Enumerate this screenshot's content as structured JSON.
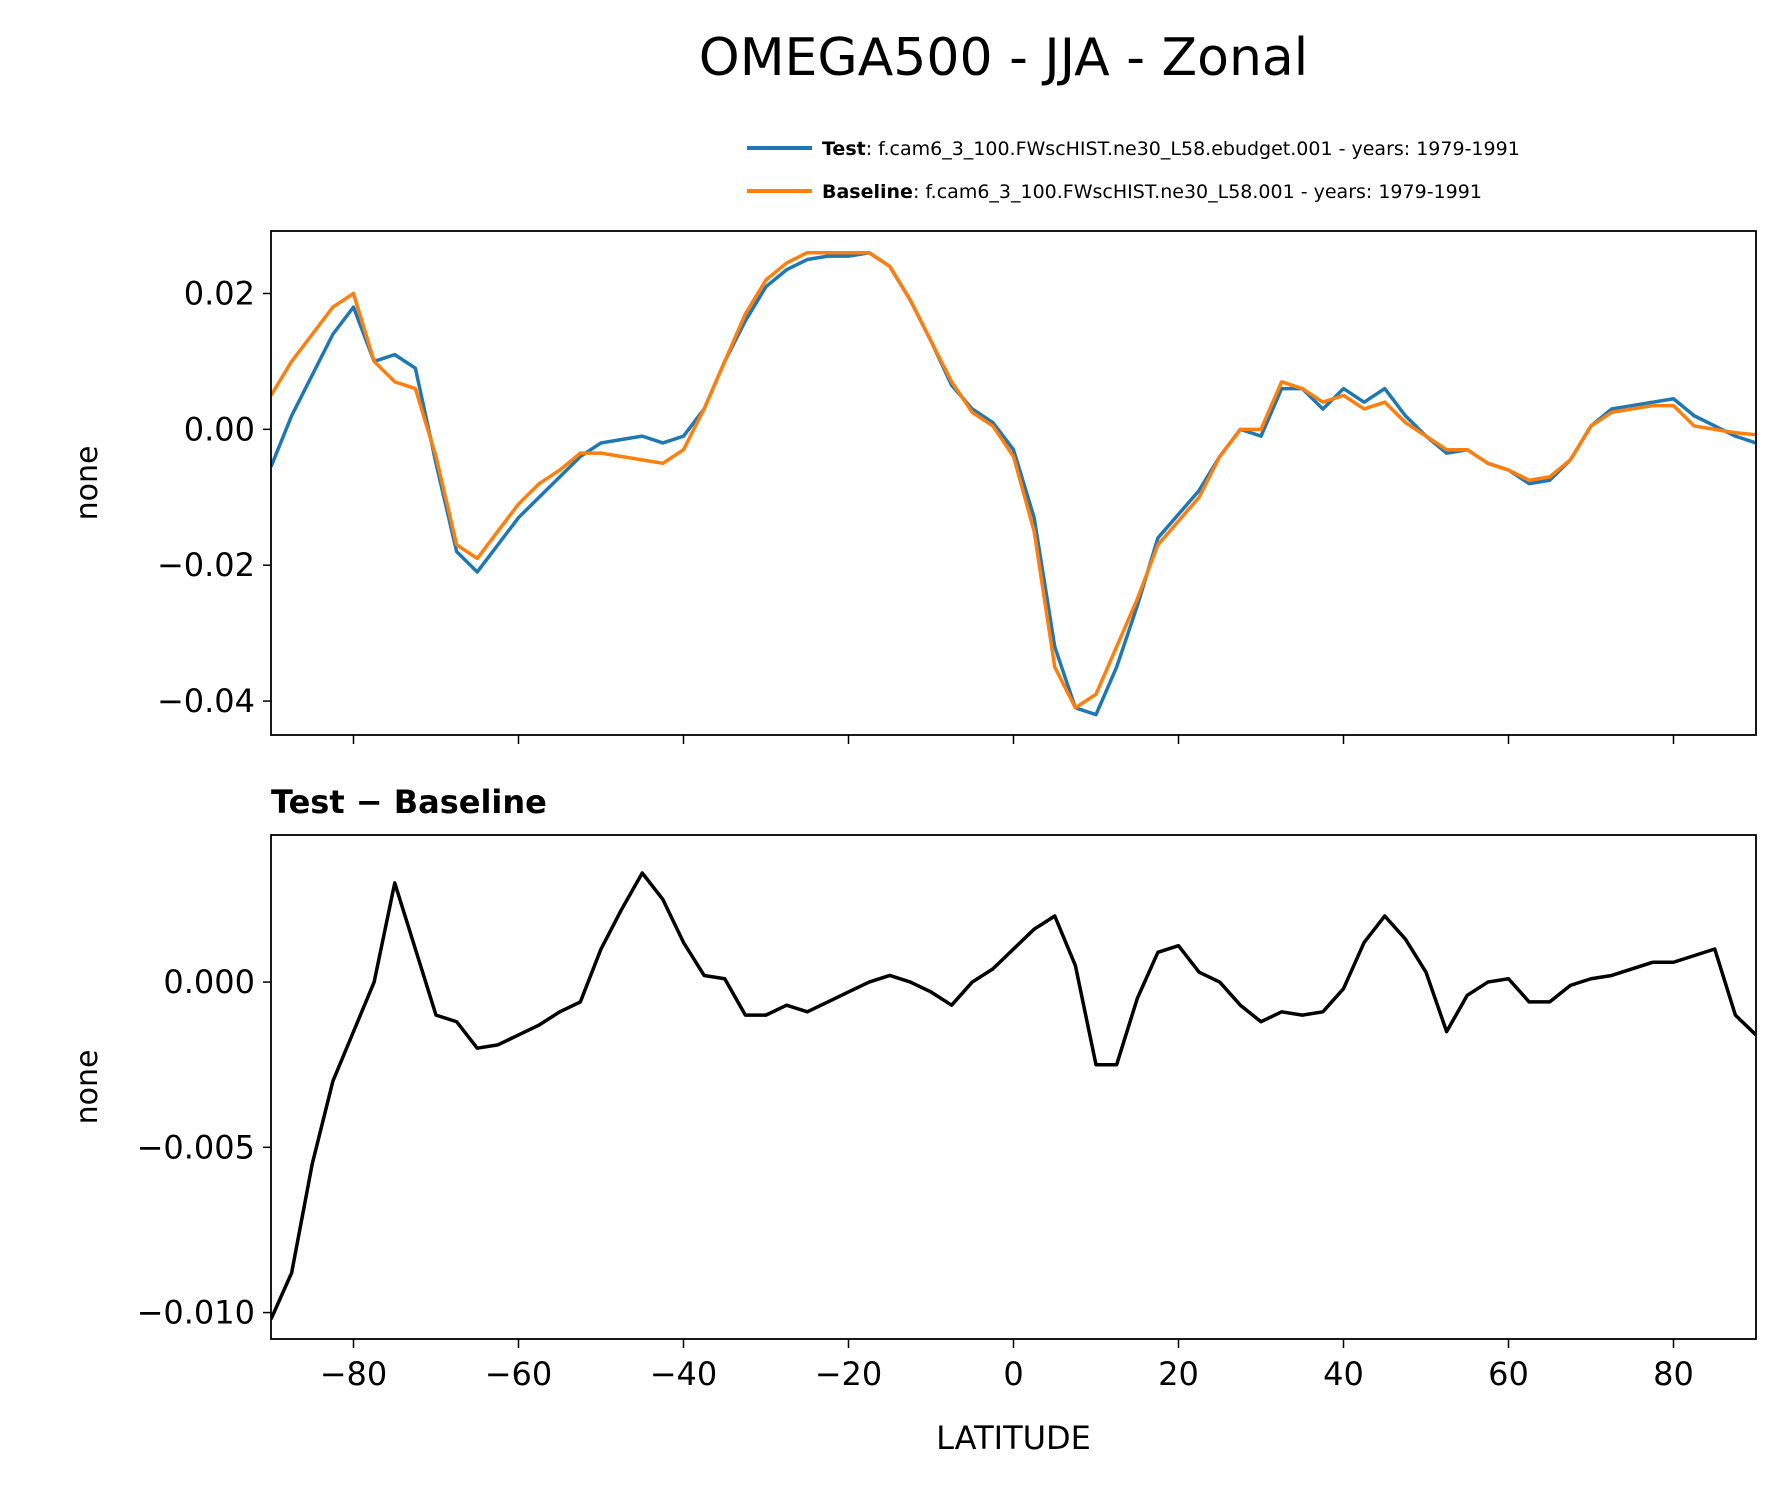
{
  "chart_data": [
    {
      "type": "line",
      "title": "OMEGA500 - JJA - Zonal",
      "ylabel": "none",
      "x": [
        -90,
        -87.5,
        -85,
        -82.5,
        -80,
        -77.5,
        -75,
        -72.5,
        -70,
        -67.5,
        -65,
        -62.5,
        -60,
        -57.5,
        -55,
        -52.5,
        -50,
        -47.5,
        -45,
        -42.5,
        -40,
        -37.5,
        -35,
        -32.5,
        -30,
        -27.5,
        -25,
        -22.5,
        -20,
        -17.5,
        -15,
        -12.5,
        -10,
        -7.5,
        -5,
        -2.5,
        0,
        2.5,
        5,
        7.5,
        10,
        12.5,
        15,
        17.5,
        20,
        22.5,
        25,
        27.5,
        30,
        32.5,
        35,
        37.5,
        40,
        42.5,
        45,
        47.5,
        50,
        52.5,
        55,
        57.5,
        60,
        62.5,
        65,
        67.5,
        70,
        72.5,
        75,
        77.5,
        80,
        82.5,
        85,
        87.5,
        90
      ],
      "series": [
        {
          "name": "Test",
          "legend_label": ": f.cam6_3_100.FWscHIST.ne30_L58.ebudget.001 - years: 1979-1991",
          "color": "#1f77b4",
          "values": [
            -0.0055,
            0.002,
            0.008,
            0.014,
            0.018,
            0.01,
            0.011,
            0.009,
            -0.005,
            -0.018,
            -0.021,
            -0.017,
            -0.013,
            -0.01,
            -0.007,
            -0.004,
            -0.002,
            -0.0015,
            -0.001,
            -0.002,
            -0.001,
            0.003,
            0.01,
            0.016,
            0.021,
            0.0235,
            0.025,
            0.0255,
            0.0255,
            0.026,
            0.024,
            0.019,
            0.013,
            0.0065,
            0.003,
            0.001,
            -0.003,
            -0.013,
            -0.032,
            -0.041,
            -0.042,
            -0.035,
            -0.026,
            -0.016,
            -0.0125,
            -0.009,
            -0.004,
            0.0,
            -0.001,
            0.006,
            0.006,
            0.003,
            0.006,
            0.004,
            0.006,
            0.002,
            -0.001,
            -0.0035,
            -0.003,
            -0.005,
            -0.006,
            -0.008,
            -0.0075,
            -0.0045,
            0.0005,
            0.003,
            0.0035,
            0.004,
            0.0045,
            0.002,
            0.0005,
            -0.001,
            -0.002
          ]
        },
        {
          "name": "Baseline",
          "legend_label": ": f.cam6_3_100.FWscHIST.ne30_L58.001 - years: 1979-1991",
          "color": "#ff7f0e",
          "values": [
            0.005,
            0.01,
            0.014,
            0.018,
            0.02,
            0.01,
            0.007,
            0.006,
            -0.004,
            -0.017,
            -0.019,
            -0.015,
            -0.011,
            -0.008,
            -0.006,
            -0.0035,
            -0.0035,
            -0.004,
            -0.0045,
            -0.005,
            -0.003,
            0.003,
            0.01,
            0.017,
            0.022,
            0.0245,
            0.026,
            0.026,
            0.026,
            0.026,
            0.024,
            0.019,
            0.013,
            0.007,
            0.0025,
            0.0005,
            -0.004,
            -0.015,
            -0.035,
            -0.041,
            -0.039,
            -0.032,
            -0.025,
            -0.017,
            -0.0135,
            -0.01,
            -0.004,
            0.0,
            0.0,
            0.007,
            0.006,
            0.004,
            0.005,
            0.003,
            0.004,
            0.001,
            -0.001,
            -0.003,
            -0.003,
            -0.005,
            -0.006,
            -0.0075,
            -0.007,
            -0.0045,
            0.0005,
            0.0025,
            0.003,
            0.0035,
            0.0035,
            0.0005,
            0.0,
            -0.0005,
            -0.0008
          ]
        }
      ],
      "xlim": [
        -90,
        90
      ],
      "ylim": [
        -0.045,
        0.0292
      ],
      "xticks": [
        {
          "value": -80,
          "label": "−80"
        },
        {
          "value": -60,
          "label": "−60"
        },
        {
          "value": -40,
          "label": "−40"
        },
        {
          "value": -20,
          "label": "−20"
        },
        0,
        20,
        40,
        60,
        80
      ],
      "show_xtick_labels": false,
      "yticks": [
        {
          "value": -0.04,
          "label": "−0.04"
        },
        {
          "value": -0.02,
          "label": "−0.02"
        },
        {
          "value": 0,
          "label": "0.00"
        },
        0.02
      ],
      "grid": false,
      "legend": "top right"
    },
    {
      "type": "line",
      "title": "Test − Baseline",
      "ylabel": "none",
      "xlabel": "LATITUDE",
      "x": [
        -90,
        -87.5,
        -85,
        -82.5,
        -80,
        -77.5,
        -75,
        -72.5,
        -70,
        -67.5,
        -65,
        -62.5,
        -60,
        -57.5,
        -55,
        -52.5,
        -50,
        -47.5,
        -45,
        -42.5,
        -40,
        -37.5,
        -35,
        -32.5,
        -30,
        -27.5,
        -25,
        -22.5,
        -20,
        -17.5,
        -15,
        -12.5,
        -10,
        -7.5,
        -5,
        -2.5,
        0,
        2.5,
        5,
        7.5,
        10,
        12.5,
        15,
        17.5,
        20,
        22.5,
        25,
        27.5,
        30,
        32.5,
        35,
        37.5,
        40,
        42.5,
        45,
        47.5,
        50,
        52.5,
        55,
        57.5,
        60,
        62.5,
        65,
        67.5,
        70,
        72.5,
        75,
        77.5,
        80,
        82.5,
        85,
        87.5,
        90
      ],
      "series": [
        {
          "color": "#000000",
          "values": [
            -0.0102,
            -0.0088,
            -0.0055,
            -0.003,
            -0.0015,
            0.0,
            0.003,
            0.001,
            -0.001,
            -0.0012,
            -0.002,
            -0.0019,
            -0.0016,
            -0.0013,
            -0.0009,
            -0.0006,
            0.001,
            0.0022,
            0.0033,
            0.0025,
            0.0012,
            0.0002,
            0.0001,
            -0.001,
            -0.001,
            -0.0007,
            -0.0009,
            -0.0006,
            -0.0003,
            0.0,
            0.0002,
            0.0,
            -0.0003,
            -0.0007,
            0.0,
            0.0004,
            0.001,
            0.0016,
            0.002,
            0.0005,
            -0.0025,
            -0.0025,
            -0.0005,
            0.0009,
            0.0011,
            0.0003,
            0.0,
            -0.0007,
            -0.0012,
            -0.0009,
            -0.001,
            -0.0009,
            -0.0002,
            0.0012,
            0.002,
            0.0013,
            0.0003,
            -0.0015,
            -0.0004,
            0.0,
            0.0001,
            -0.0006,
            -0.0006,
            -0.0001,
            0.0001,
            0.0002,
            0.0004,
            0.0006,
            0.0006,
            0.0008,
            0.001,
            -0.001,
            -0.0016
          ]
        }
      ],
      "xlim": [
        -90,
        90
      ],
      "ylim": [
        -0.0108,
        0.00445
      ],
      "xticks": [
        {
          "value": -80,
          "label": "−80"
        },
        {
          "value": -60,
          "label": "−60"
        },
        {
          "value": -40,
          "label": "−40"
        },
        {
          "value": -20,
          "label": "−20"
        },
        0,
        20,
        40,
        60,
        80
      ],
      "show_xtick_labels": true,
      "yticks": [
        {
          "value": -0.01,
          "label": "−0.010"
        },
        {
          "value": -0.005,
          "label": "−0.005"
        },
        {
          "value": 0,
          "label": "0.000"
        }
      ],
      "grid": false
    }
  ]
}
